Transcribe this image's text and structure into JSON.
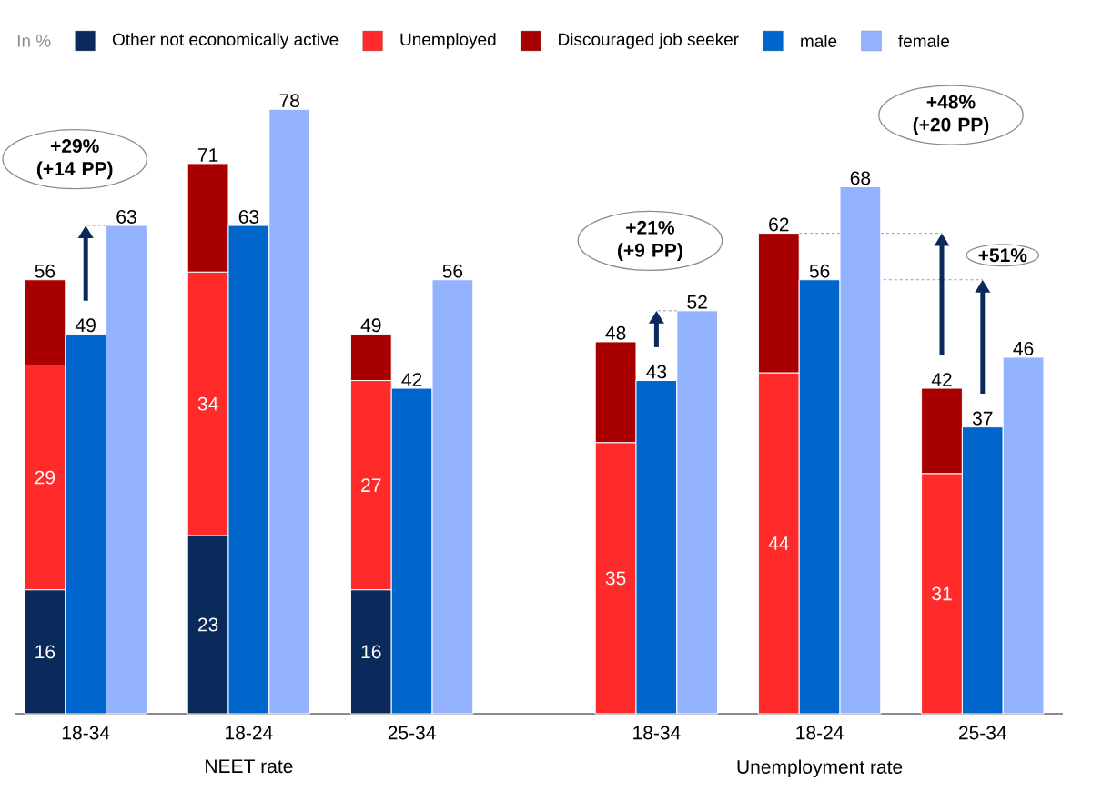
{
  "chart_data": {
    "type": "bar",
    "stacked": true,
    "legend": "top",
    "legend_title": "In %",
    "categories": [
      null,
      "18-34",
      null,
      null,
      null,
      "18-24",
      null,
      null,
      null,
      "25-34",
      null,
      null,
      null,
      null,
      null,
      "18-34",
      null,
      null,
      null,
      "18-24",
      null,
      null,
      null,
      "25-34",
      null
    ],
    "series": [
      {
        "name": "Other not economically active",
        "color": "#0a2a5c",
        "values": [
          16,
          null,
          null,
          null,
          23,
          null,
          null,
          null,
          16,
          null,
          null,
          null,
          null,
          null,
          null,
          null,
          null,
          null,
          null,
          null,
          null,
          null,
          null,
          null,
          null
        ],
        "value_labels": [
          "16",
          null,
          null,
          null,
          "23",
          null,
          null,
          null,
          "16",
          null,
          null,
          null,
          null,
          null,
          null,
          null,
          null,
          null,
          null,
          null,
          null,
          null,
          null,
          null,
          null
        ]
      },
      {
        "name": "Unemployed",
        "color": "#ff2a2a",
        "values": [
          29,
          null,
          null,
          null,
          34,
          null,
          null,
          null,
          27,
          null,
          null,
          null,
          null,
          null,
          35,
          null,
          null,
          null,
          44,
          null,
          null,
          null,
          31,
          null,
          null
        ],
        "value_labels": [
          "29",
          null,
          null,
          null,
          "34",
          null,
          null,
          null,
          "27",
          null,
          null,
          null,
          null,
          null,
          "35",
          null,
          null,
          null,
          "44",
          null,
          null,
          null,
          "31",
          null,
          null
        ]
      },
      {
        "name": "Discouraged job seeker",
        "color": "#a80000",
        "values": [
          11,
          null,
          null,
          null,
          14,
          null,
          null,
          null,
          6,
          null,
          null,
          null,
          null,
          null,
          13,
          null,
          null,
          null,
          18,
          null,
          null,
          null,
          11,
          null,
          null
        ]
      },
      {
        "name": "male",
        "color": "#0066cc",
        "values": [
          null,
          49,
          null,
          null,
          null,
          63,
          null,
          null,
          null,
          42,
          null,
          null,
          null,
          null,
          null,
          43,
          null,
          null,
          null,
          56,
          null,
          null,
          null,
          37,
          null
        ],
        "value_labels": [
          null,
          "49",
          null,
          null,
          null,
          "63",
          null,
          null,
          null,
          "42",
          null,
          null,
          null,
          null,
          null,
          "43",
          null,
          null,
          null,
          "56",
          null,
          null,
          null,
          "37",
          null
        ]
      },
      {
        "name": "female",
        "color": "#94b3ff",
        "values": [
          null,
          null,
          63,
          null,
          null,
          null,
          78,
          null,
          null,
          null,
          56,
          null,
          null,
          null,
          null,
          null,
          52,
          null,
          null,
          null,
          68,
          null,
          null,
          null,
          46
        ],
        "value_labels": [
          null,
          null,
          "63",
          null,
          null,
          null,
          "78",
          null,
          null,
          null,
          "56",
          null,
          null,
          null,
          null,
          null,
          "52",
          null,
          null,
          null,
          "68",
          null,
          null,
          null,
          "46"
        ]
      }
    ],
    "totals": [
      "56",
      null,
      null,
      null,
      "71",
      null,
      null,
      null,
      "49",
      null,
      null,
      null,
      null,
      null,
      "48",
      null,
      null,
      null,
      "62",
      null,
      null,
      null,
      "42",
      null,
      null
    ],
    "annotations": [
      "+29% (+14 PP)",
      "+21% (+9 PP)",
      "+48% (+20 PP)",
      "+51%",
      "NEET rate",
      "Unemployment rate"
    ]
  }
}
